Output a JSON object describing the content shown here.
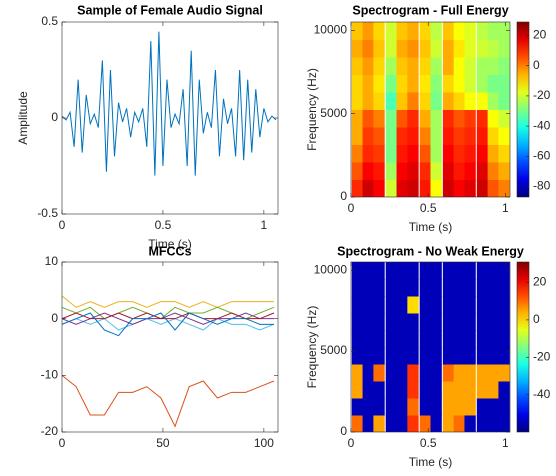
{
  "chart_data": [
    {
      "type": "line",
      "title": "Sample of Female Audio Signal",
      "xlabel": "Time (s)",
      "ylabel": "Amplitude",
      "x": [
        0,
        0.02,
        0.04,
        0.06,
        0.08,
        0.1,
        0.12,
        0.14,
        0.16,
        0.18,
        0.2,
        0.22,
        0.24,
        0.26,
        0.28,
        0.3,
        0.32,
        0.34,
        0.36,
        0.38,
        0.4,
        0.42,
        0.44,
        0.46,
        0.48,
        0.5,
        0.52,
        0.54,
        0.56,
        0.58,
        0.6,
        0.62,
        0.64,
        0.66,
        0.68,
        0.7,
        0.72,
        0.74,
        0.76,
        0.78,
        0.8,
        0.82,
        0.84,
        0.86,
        0.88,
        0.9,
        0.92,
        0.94,
        0.96,
        0.98,
        1,
        1.02,
        1.04,
        1.06
      ],
      "series": [
        {
          "color": "#0072BD",
          "values": [
            0.01,
            -0.01,
            0.03,
            -0.15,
            0.2,
            -0.18,
            0.12,
            -0.03,
            0.02,
            -0.05,
            0.3,
            -0.28,
            0.25,
            -0.2,
            0.08,
            -0.02,
            0.05,
            -0.1,
            0.03,
            -0.02,
            0.05,
            -0.15,
            0.4,
            -0.3,
            0.45,
            -0.25,
            0.2,
            -0.05,
            0.02,
            -0.03,
            0.15,
            -0.25,
            0.35,
            -0.3,
            0.2,
            -0.08,
            0.03,
            -0.05,
            0.25,
            -0.2,
            0.1,
            -0.03,
            0.05,
            -0.2,
            0.25,
            -0.22,
            0.2,
            -0.18,
            0.15,
            -0.1,
            0.05,
            -0.02,
            0.01,
            -0.01
          ]
        }
      ],
      "xlim": [
        0,
        1.07
      ],
      "xticks": [
        0,
        0.5,
        1
      ],
      "ylim": [
        -0.5,
        0.5
      ],
      "yticks": [
        -0.5,
        0,
        0.5
      ]
    },
    {
      "type": "heatmap",
      "title": "Spectrogram - Full Energy",
      "xlabel": "Time (s)",
      "ylabel": "Frequency (Hz)",
      "colormap": "jet",
      "x": [
        0.04,
        0.11,
        0.18,
        0.26,
        0.33,
        0.4,
        0.48,
        0.55,
        0.63,
        0.7,
        0.77,
        0.85,
        0.92,
        0.99
      ],
      "y": [
        525,
        1575,
        2625,
        3675,
        4725,
        5775,
        6825,
        7875,
        8925,
        9975
      ],
      "z": [
        [
          10,
          20,
          15,
          -20,
          18,
          20,
          12,
          -15,
          20,
          15,
          18,
          20,
          5,
          0
        ],
        [
          5,
          15,
          12,
          -25,
          15,
          18,
          10,
          -20,
          18,
          12,
          15,
          18,
          0,
          -5
        ],
        [
          0,
          10,
          8,
          -30,
          12,
          15,
          5,
          -25,
          15,
          10,
          12,
          15,
          -5,
          -10
        ],
        [
          -5,
          8,
          5,
          -30,
          10,
          12,
          0,
          -25,
          12,
          8,
          10,
          12,
          -10,
          -15
        ],
        [
          -5,
          5,
          0,
          -30,
          5,
          10,
          -5,
          -25,
          10,
          5,
          8,
          10,
          -15,
          -20
        ],
        [
          -10,
          -5,
          -10,
          -35,
          -8,
          0,
          -10,
          -30,
          -5,
          -10,
          -15,
          -15,
          -25,
          -30
        ],
        [
          -10,
          -5,
          -12,
          -30,
          -10,
          -5,
          -12,
          -28,
          -10,
          -15,
          -20,
          -25,
          -30,
          -30
        ],
        [
          -8,
          -3,
          -10,
          -25,
          -8,
          -5,
          -10,
          -25,
          -5,
          -15,
          -20,
          -25,
          -25,
          -28
        ],
        [
          -5,
          0,
          -8,
          -20,
          -5,
          -2,
          -8,
          -20,
          -5,
          -12,
          -18,
          -20,
          -22,
          -25
        ],
        [
          -8,
          -3,
          -10,
          -20,
          -8,
          -5,
          -10,
          -22,
          -8,
          -15,
          -18,
          -22,
          -25,
          -25
        ]
      ],
      "xlim": [
        0,
        1.03
      ],
      "xticks": [
        0,
        0.5,
        1
      ],
      "ylim": [
        0,
        10500
      ],
      "yticks": [
        0,
        5000,
        10000
      ],
      "clim": [
        -87,
        29
      ],
      "cticks": [
        -80,
        -60,
        -40,
        -20,
        0,
        20
      ]
    },
    {
      "type": "line",
      "title": "MFCCs",
      "x": [
        0,
        7,
        14,
        21,
        28,
        35,
        42,
        49,
        56,
        63,
        70,
        77,
        84,
        91,
        98,
        105
      ],
      "series": [
        {
          "color": "#D95319",
          "values": [
            -10,
            -12,
            -17,
            -17,
            -13,
            -13,
            -12,
            -14,
            -19,
            -12,
            -11,
            -14,
            -13,
            -13,
            -12,
            -11
          ]
        },
        {
          "color": "#EDB120",
          "values": [
            4,
            2,
            3,
            2,
            3,
            3,
            2,
            3,
            3,
            2,
            3,
            2,
            3,
            3,
            3,
            3
          ]
        },
        {
          "color": "#77AC30",
          "values": [
            2,
            1,
            2,
            0,
            1,
            2,
            1,
            0,
            2,
            1,
            1,
            2,
            1,
            0,
            1,
            2
          ]
        },
        {
          "color": "#4DBEEE",
          "values": [
            -1,
            0,
            -1,
            0,
            -2,
            -1,
            0,
            -1,
            0,
            -1,
            -2,
            0,
            -1,
            -1,
            -2,
            -1
          ]
        },
        {
          "color": "#7E2F8E",
          "values": [
            0,
            -1,
            0,
            1,
            0,
            -1,
            0,
            0,
            1,
            0,
            -1,
            0,
            0,
            1,
            0,
            0
          ]
        },
        {
          "color": "#A2142F",
          "values": [
            0,
            1,
            0,
            0,
            1,
            0,
            1,
            0,
            0,
            1,
            0,
            0,
            1,
            0,
            0,
            1
          ]
        },
        {
          "color": "#0072BD",
          "values": [
            -1,
            0,
            1,
            -2,
            -3,
            0,
            0,
            1,
            -2,
            1,
            0,
            -1,
            0,
            0,
            -1,
            -1
          ]
        }
      ],
      "xlim": [
        0,
        107
      ],
      "xticks": [
        0,
        50,
        100
      ],
      "ylim": [
        -20,
        10
      ],
      "yticks": [
        -20,
        -10,
        0,
        10
      ]
    },
    {
      "type": "heatmap",
      "title": "Spectrogram - No Weak Energy",
      "xlabel": "Time (s)",
      "ylabel": "Frequency (Hz)",
      "colormap": "jet",
      "x": [
        0.04,
        0.11,
        0.18,
        0.26,
        0.33,
        0.4,
        0.48,
        0.55,
        0.63,
        0.7,
        0.77,
        0.85,
        0.92,
        0.99
      ],
      "y": [
        525,
        1575,
        2625,
        3675,
        4725,
        5775,
        6825,
        7875,
        8925,
        9975
      ],
      "z": [
        [
          10,
          -55,
          5,
          -55,
          -55,
          15,
          10,
          -55,
          5,
          10,
          -55,
          -55,
          -55,
          -55
        ],
        [
          -55,
          -55,
          -55,
          -55,
          -55,
          10,
          -55,
          -55,
          5,
          5,
          5,
          -55,
          -55,
          -55
        ],
        [
          5,
          -55,
          -55,
          -55,
          -55,
          15,
          -55,
          -55,
          5,
          5,
          5,
          5,
          5,
          -55
        ],
        [
          5,
          -55,
          10,
          -55,
          -55,
          15,
          -55,
          -55,
          10,
          5,
          5,
          5,
          5,
          5
        ],
        [
          -55,
          -55,
          -55,
          -55,
          -55,
          -55,
          -55,
          -55,
          -55,
          -55,
          -55,
          -55,
          -55,
          -55
        ],
        [
          -55,
          -55,
          -55,
          -55,
          -55,
          -55,
          -55,
          -55,
          -55,
          -55,
          -55,
          -55,
          -55,
          -55
        ],
        [
          -55,
          -55,
          -55,
          -55,
          -55,
          -55,
          -55,
          -55,
          -55,
          -55,
          -55,
          -55,
          -55,
          -55
        ],
        [
          -55,
          -55,
          -55,
          -55,
          -55,
          0,
          -55,
          -55,
          -55,
          -55,
          -55,
          -55,
          -55,
          -55
        ],
        [
          -55,
          -55,
          -55,
          -55,
          -55,
          -55,
          -55,
          -55,
          -55,
          -55,
          -55,
          -55,
          -55,
          -55
        ],
        [
          -55,
          -55,
          -55,
          -55,
          -55,
          -55,
          -55,
          -55,
          -55,
          -55,
          -55,
          -55,
          -55,
          -55
        ]
      ],
      "xlim": [
        0,
        1.03
      ],
      "xticks": [
        0,
        0.5,
        1
      ],
      "ylim": [
        0,
        10500
      ],
      "yticks": [
        0,
        5000,
        10000
      ],
      "clim": [
        -60,
        31
      ],
      "cticks": [
        -40,
        -20,
        0,
        20
      ]
    }
  ]
}
